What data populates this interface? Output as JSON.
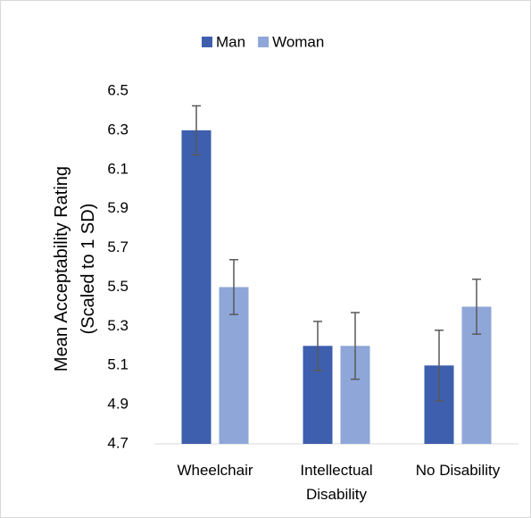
{
  "chart_data": {
    "type": "bar",
    "y_label": "Mean Acceptability Rating (Scaled to 1 SD)",
    "categories": [
      "Wheelchair",
      "Intellectual Disability",
      "No Disability"
    ],
    "series": [
      {
        "name": "Man",
        "color": "#3e5fad",
        "values": [
          6.3,
          5.2,
          5.1
        ],
        "errors": [
          0.125,
          0.125,
          0.18
        ]
      },
      {
        "name": "Woman",
        "color": "#8fa6d8",
        "values": [
          5.5,
          5.2,
          5.4
        ],
        "errors": [
          0.14,
          0.17,
          0.14
        ]
      }
    ],
    "ylim": [
      4.7,
      6.5
    ],
    "yticks": [
      {
        "value": 4.7,
        "label": "4.7"
      },
      {
        "value": 4.9,
        "label": "4.9"
      },
      {
        "value": 5.1,
        "label": "5.1"
      },
      {
        "value": 5.3,
        "label": "5.3"
      },
      {
        "value": 5.5,
        "label": "5.5"
      },
      {
        "value": 5.7,
        "label": "5.7"
      },
      {
        "value": 5.9,
        "label": "5.9"
      },
      {
        "value": 6.1,
        "label": "6.1"
      },
      {
        "value": 6.3,
        "label": "6.3"
      },
      {
        "value": 6.5,
        "label": "6.5"
      }
    ],
    "legend": "top"
  }
}
